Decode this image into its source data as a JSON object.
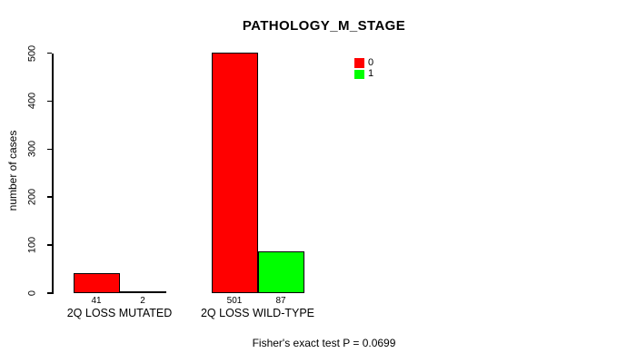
{
  "chart_data": {
    "type": "bar",
    "title": "PATHOLOGY_M_STAGE",
    "ylabel": "number of cases",
    "xlabel": "",
    "categories": [
      "2Q LOSS MUTATED",
      "2Q LOSS WILD-TYPE"
    ],
    "series": [
      {
        "name": "0",
        "color": "#ff0000",
        "values": [
          41,
          501
        ]
      },
      {
        "name": "1",
        "color": "#00ff00",
        "values": [
          2,
          87
        ]
      }
    ],
    "bar_value_labels": [
      [
        41,
        2
      ],
      [
        501,
        87
      ]
    ],
    "yticks": [
      0,
      100,
      200,
      300,
      400,
      500
    ],
    "ylim": [
      0,
      500
    ],
    "grid": false,
    "legend_position": "top-right",
    "footer": "Fisher's exact test P = 0.0699"
  },
  "colors": {
    "series_0": "#ff0000",
    "series_1": "#00ff00",
    "axis": "#000000",
    "background": "#ffffff"
  }
}
